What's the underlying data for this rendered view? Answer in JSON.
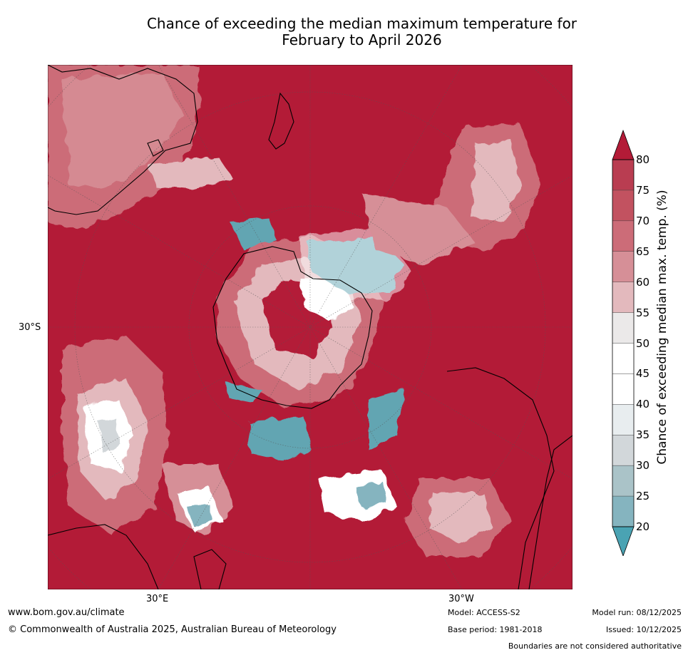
{
  "title": {
    "line1": "Chance of exceeding the median maximum temperature for",
    "line2": "February to April 2026"
  },
  "axis_labels": {
    "lat": "30°S",
    "lon_east": "30°E",
    "lon_west": "30°W"
  },
  "colorbar": {
    "title": "Chance of exceeding median max. temp. (%)",
    "ticks": [
      "80",
      "75",
      "70",
      "65",
      "60",
      "55",
      "50",
      "45",
      "40",
      "35",
      "30",
      "25",
      "20"
    ],
    "bands_top_to_bottom": [
      "#b93d51",
      "#c25260",
      "#cc6c78",
      "#d68f97",
      "#e3b9bd",
      "#ebe9e9",
      "#ffffff",
      "#ffffff",
      "#e8edef",
      "#d2d7da",
      "#aac3c8",
      "#85b4bf",
      "#62a5b2"
    ],
    "over_color": "#b31b37",
    "under_color": "#4aa3b3"
  },
  "colors": {
    "background_high": "#b31b37",
    "land_outline": "#000000",
    "grid": "#555555"
  },
  "footer": {
    "website": "www.bom.gov.au/climate",
    "copyright": "© Commonwealth of Australia 2025, Australian Bureau of Meteorology",
    "model": "Model: ACCESS-S2",
    "base_period": "Base period: 1981-2018",
    "model_run": "Model run: 08/12/2025",
    "issued": "Issued: 10/12/2025",
    "disclaimer": "Boundaries are not considered authoritative"
  }
}
